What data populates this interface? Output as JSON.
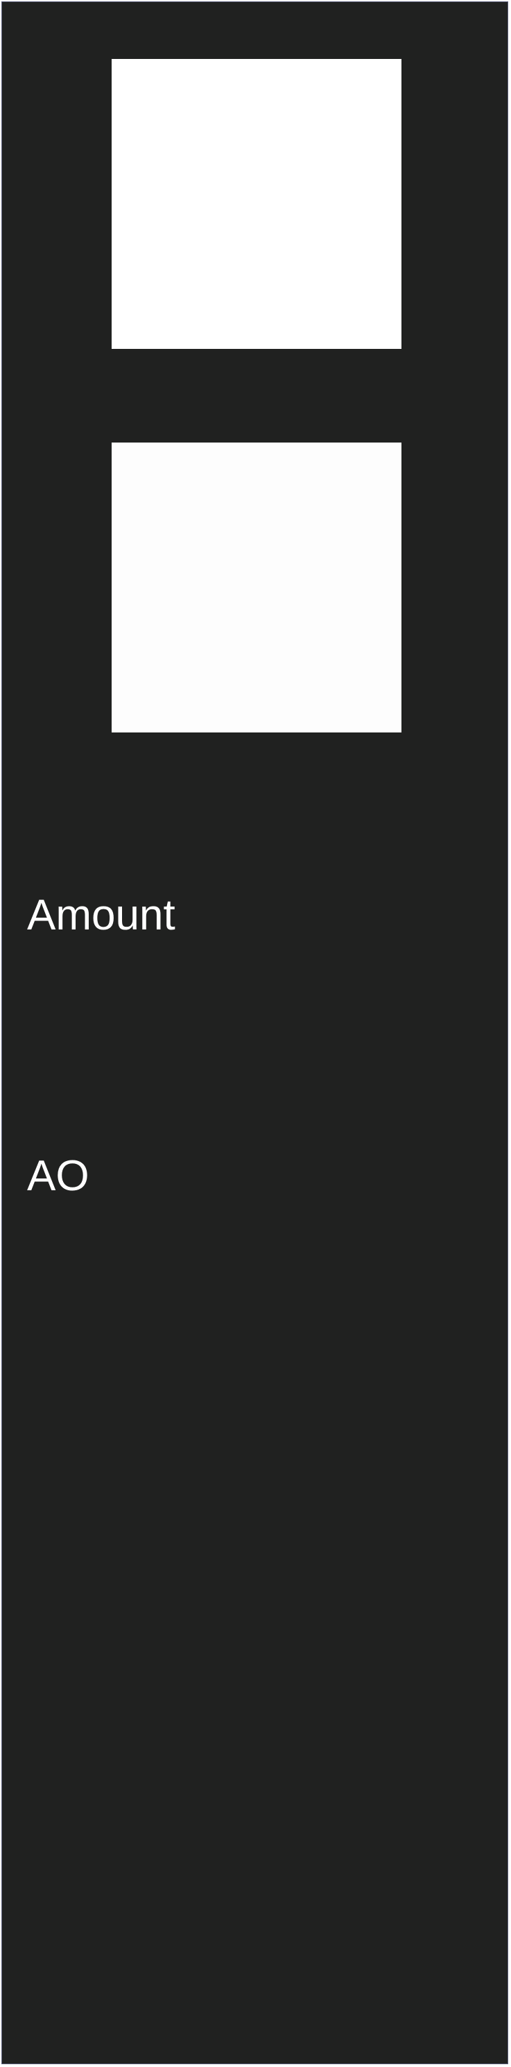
{
  "panel": {
    "colors": {
      "background": "#202120",
      "border": "#5b5f7a",
      "tile": "#ffffff",
      "text": "#ffffff"
    },
    "fields": [
      {
        "label": "Amount"
      },
      {
        "label": "AO"
      }
    ]
  }
}
